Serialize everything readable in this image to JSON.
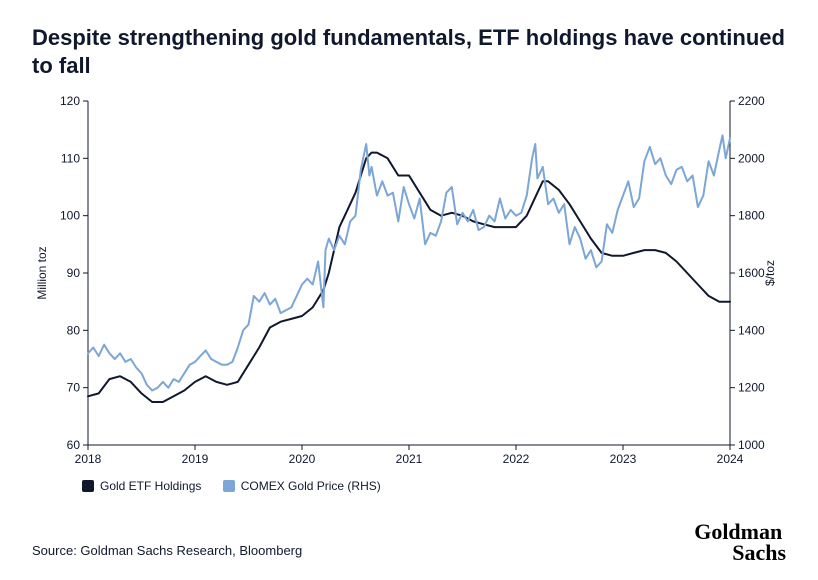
{
  "title": "Despite strengthening gold fundamentals, ETF holdings have continued to fall",
  "source": "Source: Goldman Sachs Research, Bloomberg",
  "logo_line1": "Goldman",
  "logo_line2": "Sachs",
  "chart": {
    "type": "line-dual-axis",
    "background_color": "#ffffff",
    "axis_color": "#10182e",
    "xaxis": {
      "min": 2018,
      "max": 2024,
      "ticks": [
        2018,
        2019,
        2020,
        2021,
        2022,
        2023,
        2024
      ],
      "tick_labels": [
        "2018",
        "2019",
        "2020",
        "2021",
        "2022",
        "2023",
        "2024"
      ]
    },
    "left_axis": {
      "title": "Million toz",
      "min": 60,
      "max": 120,
      "ticks": [
        60,
        70,
        80,
        90,
        100,
        110,
        120
      ]
    },
    "right_axis": {
      "title": "$/toz",
      "min": 1000,
      "max": 2200,
      "ticks": [
        1000,
        1200,
        1400,
        1600,
        1800,
        2000,
        2200
      ]
    },
    "legend": [
      {
        "label": "Gold ETF Holdings",
        "color": "#10182e"
      },
      {
        "label": "COMEX Gold Price (RHS)",
        "color": "#7ba6d6"
      }
    ],
    "series": [
      {
        "name": "Gold ETF Holdings",
        "axis": "left",
        "color": "#10182e",
        "line_width": 2,
        "points": [
          [
            2018.0,
            68.5
          ],
          [
            2018.1,
            69.0
          ],
          [
            2018.2,
            71.5
          ],
          [
            2018.3,
            72.0
          ],
          [
            2018.4,
            71.0
          ],
          [
            2018.5,
            69.0
          ],
          [
            2018.6,
            67.5
          ],
          [
            2018.7,
            67.5
          ],
          [
            2018.8,
            68.5
          ],
          [
            2018.9,
            69.5
          ],
          [
            2019.0,
            71.0
          ],
          [
            2019.1,
            72.0
          ],
          [
            2019.2,
            71.0
          ],
          [
            2019.3,
            70.5
          ],
          [
            2019.4,
            71.0
          ],
          [
            2019.5,
            74.0
          ],
          [
            2019.6,
            77.0
          ],
          [
            2019.7,
            80.5
          ],
          [
            2019.8,
            81.5
          ],
          [
            2019.9,
            82.0
          ],
          [
            2020.0,
            82.5
          ],
          [
            2020.1,
            84.0
          ],
          [
            2020.2,
            87.0
          ],
          [
            2020.25,
            90.0
          ],
          [
            2020.3,
            94.0
          ],
          [
            2020.35,
            98.0
          ],
          [
            2020.4,
            100.0
          ],
          [
            2020.5,
            104.0
          ],
          [
            2020.55,
            107.0
          ],
          [
            2020.6,
            110.0
          ],
          [
            2020.65,
            111.0
          ],
          [
            2020.7,
            111.0
          ],
          [
            2020.8,
            110.0
          ],
          [
            2020.9,
            107.0
          ],
          [
            2021.0,
            107.0
          ],
          [
            2021.1,
            104.0
          ],
          [
            2021.2,
            101.0
          ],
          [
            2021.3,
            100.0
          ],
          [
            2021.4,
            100.5
          ],
          [
            2021.5,
            100.0
          ],
          [
            2021.6,
            99.0
          ],
          [
            2021.7,
            98.5
          ],
          [
            2021.8,
            98.0
          ],
          [
            2021.9,
            98.0
          ],
          [
            2022.0,
            98.0
          ],
          [
            2022.1,
            100.0
          ],
          [
            2022.2,
            104.0
          ],
          [
            2022.25,
            106.0
          ],
          [
            2022.3,
            106.0
          ],
          [
            2022.4,
            104.5
          ],
          [
            2022.5,
            102.0
          ],
          [
            2022.6,
            99.0
          ],
          [
            2022.7,
            96.0
          ],
          [
            2022.8,
            93.5
          ],
          [
            2022.9,
            93.0
          ],
          [
            2023.0,
            93.0
          ],
          [
            2023.1,
            93.5
          ],
          [
            2023.2,
            94.0
          ],
          [
            2023.3,
            94.0
          ],
          [
            2023.4,
            93.5
          ],
          [
            2023.5,
            92.0
          ],
          [
            2023.6,
            90.0
          ],
          [
            2023.7,
            88.0
          ],
          [
            2023.8,
            86.0
          ],
          [
            2023.9,
            85.0
          ],
          [
            2024.0,
            85.0
          ]
        ]
      },
      {
        "name": "COMEX Gold Price",
        "axis": "right",
        "color": "#7ba6d6",
        "line_width": 2,
        "points": [
          [
            2018.0,
            1320
          ],
          [
            2018.05,
            1340
          ],
          [
            2018.1,
            1310
          ],
          [
            2018.15,
            1350
          ],
          [
            2018.2,
            1320
          ],
          [
            2018.25,
            1300
          ],
          [
            2018.3,
            1320
          ],
          [
            2018.35,
            1290
          ],
          [
            2018.4,
            1300
          ],
          [
            2018.45,
            1270
          ],
          [
            2018.5,
            1250
          ],
          [
            2018.55,
            1210
          ],
          [
            2018.6,
            1190
          ],
          [
            2018.65,
            1200
          ],
          [
            2018.7,
            1220
          ],
          [
            2018.75,
            1200
          ],
          [
            2018.8,
            1230
          ],
          [
            2018.85,
            1220
          ],
          [
            2018.9,
            1250
          ],
          [
            2018.95,
            1280
          ],
          [
            2019.0,
            1290
          ],
          [
            2019.05,
            1310
          ],
          [
            2019.1,
            1330
          ],
          [
            2019.15,
            1300
          ],
          [
            2019.2,
            1290
          ],
          [
            2019.25,
            1280
          ],
          [
            2019.3,
            1280
          ],
          [
            2019.35,
            1290
          ],
          [
            2019.4,
            1340
          ],
          [
            2019.45,
            1400
          ],
          [
            2019.5,
            1420
          ],
          [
            2019.55,
            1520
          ],
          [
            2019.6,
            1500
          ],
          [
            2019.65,
            1530
          ],
          [
            2019.7,
            1490
          ],
          [
            2019.75,
            1510
          ],
          [
            2019.8,
            1460
          ],
          [
            2019.85,
            1470
          ],
          [
            2019.9,
            1480
          ],
          [
            2019.95,
            1520
          ],
          [
            2020.0,
            1560
          ],
          [
            2020.05,
            1580
          ],
          [
            2020.1,
            1560
          ],
          [
            2020.15,
            1640
          ],
          [
            2020.2,
            1480
          ],
          [
            2020.22,
            1680
          ],
          [
            2020.25,
            1720
          ],
          [
            2020.3,
            1680
          ],
          [
            2020.35,
            1730
          ],
          [
            2020.4,
            1700
          ],
          [
            2020.45,
            1780
          ],
          [
            2020.5,
            1800
          ],
          [
            2020.55,
            1960
          ],
          [
            2020.6,
            2050
          ],
          [
            2020.63,
            1940
          ],
          [
            2020.65,
            1970
          ],
          [
            2020.7,
            1870
          ],
          [
            2020.75,
            1920
          ],
          [
            2020.8,
            1870
          ],
          [
            2020.85,
            1880
          ],
          [
            2020.9,
            1780
          ],
          [
            2020.95,
            1900
          ],
          [
            2021.0,
            1840
          ],
          [
            2021.05,
            1790
          ],
          [
            2021.1,
            1860
          ],
          [
            2021.15,
            1700
          ],
          [
            2021.2,
            1740
          ],
          [
            2021.25,
            1730
          ],
          [
            2021.3,
            1780
          ],
          [
            2021.35,
            1880
          ],
          [
            2021.4,
            1900
          ],
          [
            2021.45,
            1770
          ],
          [
            2021.5,
            1810
          ],
          [
            2021.55,
            1780
          ],
          [
            2021.6,
            1820
          ],
          [
            2021.65,
            1750
          ],
          [
            2021.7,
            1760
          ],
          [
            2021.75,
            1800
          ],
          [
            2021.8,
            1780
          ],
          [
            2021.85,
            1860
          ],
          [
            2021.9,
            1790
          ],
          [
            2021.95,
            1820
          ],
          [
            2022.0,
            1800
          ],
          [
            2022.05,
            1810
          ],
          [
            2022.1,
            1870
          ],
          [
            2022.15,
            2000
          ],
          [
            2022.18,
            2050
          ],
          [
            2022.2,
            1930
          ],
          [
            2022.25,
            1970
          ],
          [
            2022.3,
            1840
          ],
          [
            2022.35,
            1860
          ],
          [
            2022.4,
            1810
          ],
          [
            2022.45,
            1840
          ],
          [
            2022.5,
            1700
          ],
          [
            2022.55,
            1760
          ],
          [
            2022.6,
            1720
          ],
          [
            2022.65,
            1650
          ],
          [
            2022.7,
            1680
          ],
          [
            2022.75,
            1620
          ],
          [
            2022.8,
            1640
          ],
          [
            2022.85,
            1770
          ],
          [
            2022.9,
            1740
          ],
          [
            2022.95,
            1820
          ],
          [
            2023.0,
            1870
          ],
          [
            2023.05,
            1920
          ],
          [
            2023.1,
            1830
          ],
          [
            2023.15,
            1860
          ],
          [
            2023.2,
            1990
          ],
          [
            2023.25,
            2040
          ],
          [
            2023.3,
            1980
          ],
          [
            2023.35,
            2000
          ],
          [
            2023.4,
            1940
          ],
          [
            2023.45,
            1910
          ],
          [
            2023.5,
            1960
          ],
          [
            2023.55,
            1970
          ],
          [
            2023.6,
            1920
          ],
          [
            2023.65,
            1940
          ],
          [
            2023.7,
            1830
          ],
          [
            2023.75,
            1870
          ],
          [
            2023.8,
            1990
          ],
          [
            2023.85,
            1940
          ],
          [
            2023.9,
            2030
          ],
          [
            2023.93,
            2080
          ],
          [
            2023.96,
            2000
          ],
          [
            2024.0,
            2070
          ]
        ]
      }
    ]
  }
}
